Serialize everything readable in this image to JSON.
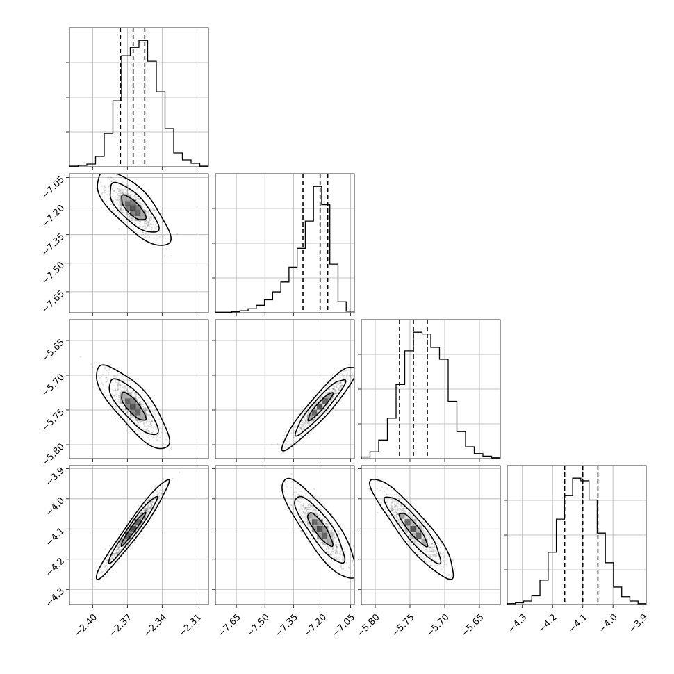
{
  "chart_data": {
    "type": "corner",
    "params": [
      {
        "id": "p0",
        "median": -2.365,
        "q16": -2.376,
        "q84": -2.355,
        "range": [
          -2.42,
          -2.3
        ],
        "ticks": [
          -2.4,
          -2.37,
          -2.34,
          -2.31
        ],
        "tick_labels": [
          "−2.40",
          "−2.37",
          "−2.34",
          "−2.31"
        ],
        "hist": [
          1,
          2,
          4,
          15,
          48,
          95,
          160,
          172,
          182,
          152,
          108,
          55,
          20,
          10,
          5,
          1
        ]
      },
      {
        "id": "p1",
        "median": -7.21,
        "q16": -7.3,
        "q84": -7.17,
        "range": [
          -7.76,
          -7.03
        ],
        "ticks": [
          -7.65,
          -7.5,
          -7.35,
          -7.2,
          -7.05
        ],
        "tick_labels": [
          "−7.65",
          "−7.50",
          "−7.35",
          "−7.20",
          "−7.05"
        ],
        "hist": [
          1,
          1,
          2,
          4,
          8,
          15,
          26,
          42,
          62,
          92,
          130,
          185,
          255,
          218,
          98,
          22,
          3
        ]
      },
      {
        "id": "p2",
        "median": -5.745,
        "q16": -5.765,
        "q84": -5.725,
        "range": [
          -5.82,
          -5.62
        ],
        "ticks": [
          -5.8,
          -5.75,
          -5.7,
          -5.65
        ],
        "tick_labels": [
          "−5.80",
          "−5.75",
          "−5.70",
          "−5.65"
        ],
        "hist": [
          2,
          8,
          22,
          48,
          88,
          128,
          150,
          148,
          132,
          118,
          68,
          32,
          14,
          6,
          3,
          1
        ]
      },
      {
        "id": "p3",
        "median": -4.1,
        "q16": -4.16,
        "q84": -4.05,
        "range": [
          -4.35,
          -3.89
        ],
        "ticks": [
          -4.3,
          -4.2,
          -4.1,
          -4.0,
          -3.9
        ],
        "tick_labels": [
          "−4.3",
          "−4.2",
          "−4.1",
          "−4.0",
          "−3.9"
        ],
        "hist": [
          1,
          2,
          4,
          10,
          28,
          60,
          98,
          125,
          145,
          142,
          120,
          82,
          48,
          20,
          9,
          4,
          1
        ]
      }
    ],
    "correlations": [
      {
        "row": 1,
        "col": 0,
        "rho": -0.75
      },
      {
        "row": 2,
        "col": 0,
        "rho": -0.8
      },
      {
        "row": 2,
        "col": 1,
        "rho": 0.93
      },
      {
        "row": 3,
        "col": 0,
        "rho": 0.97
      },
      {
        "row": 3,
        "col": 1,
        "rho": -0.85
      },
      {
        "row": 3,
        "col": 2,
        "rho": -0.9
      }
    ],
    "quantiles": [
      0.16,
      0.5,
      0.84
    ],
    "contour_levels_sigma": [
      0.5,
      1.0,
      1.5
    ],
    "grid": true,
    "colors": {
      "line": "#000000",
      "grid": "#b0b0b0",
      "background": "#ffffff"
    }
  }
}
